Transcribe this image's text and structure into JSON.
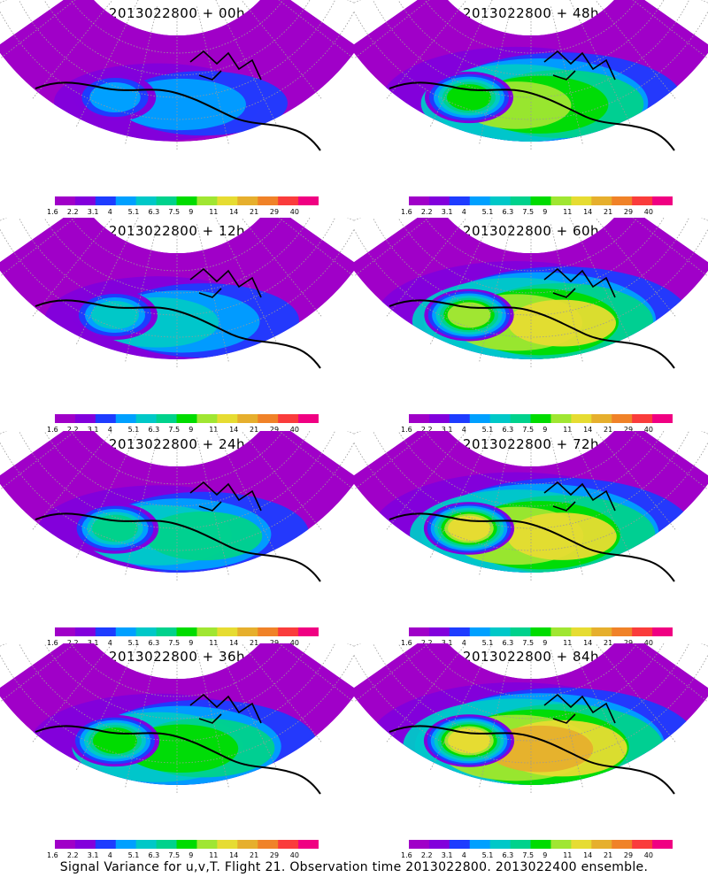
{
  "figure": {
    "caption": "Signal Variance for u,v,T.  Flight 21.  Observation time 2013022800.  2013022400 ensemble.",
    "panels": [
      {
        "title": "2013022800  +  00h",
        "lead_hours": 0,
        "intensity": 0.15
      },
      {
        "title": "2013022800  +  48h",
        "lead_hours": 48,
        "intensity": 0.62
      },
      {
        "title": "2013022800  +  12h",
        "lead_hours": 12,
        "intensity": 0.28
      },
      {
        "title": "2013022800  +  60h",
        "lead_hours": 60,
        "intensity": 0.72
      },
      {
        "title": "2013022800  +  24h",
        "lead_hours": 24,
        "intensity": 0.4
      },
      {
        "title": "2013022800  +  72h",
        "lead_hours": 72,
        "intensity": 0.8
      },
      {
        "title": "2013022800  +  36h",
        "lead_hours": 36,
        "intensity": 0.52
      },
      {
        "title": "2013022800  +  84h",
        "lead_hours": 84,
        "intensity": 0.86
      }
    ]
  },
  "colorbar": {
    "labels": [
      "1.6",
      "2.2",
      "3.1",
      "4",
      "5.1",
      "6.3",
      "7.5",
      "9",
      "11",
      "14",
      "21",
      "29",
      "40"
    ],
    "colors": [
      "#a000c8",
      "#8200dc",
      "#1e3cff",
      "#00a0ff",
      "#00c8c8",
      "#00d28c",
      "#00dc00",
      "#a0e632",
      "#e6dc32",
      "#e6af2d",
      "#f08228",
      "#fa3c3c",
      "#f00082"
    ]
  },
  "map_style": {
    "land_outline": "#000000",
    "graticule": "#9a9a9a",
    "background": "#ffffff"
  }
}
